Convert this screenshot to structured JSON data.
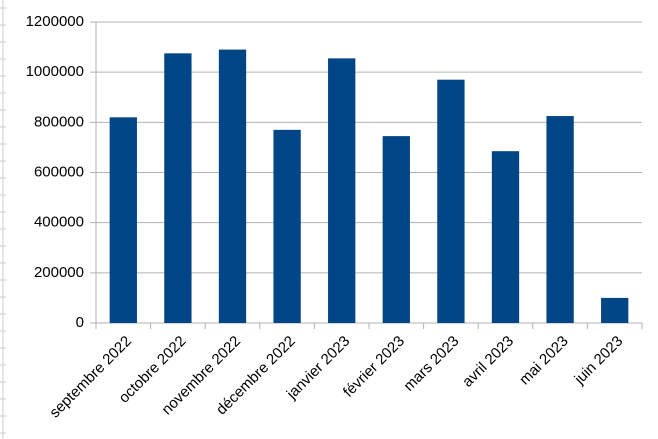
{
  "chart_data": {
    "type": "bar",
    "categories": [
      "septembre 2022",
      "octobre 2022",
      "novembre 2022",
      "décembre 2022",
      "janvier 2023",
      "février 2023",
      "mars 2023",
      "avril 2023",
      "mai 2023",
      "juin 2023"
    ],
    "values": [
      820000,
      1075000,
      1090000,
      770000,
      1055000,
      745000,
      970000,
      685000,
      825000,
      100000
    ],
    "color": "#004586",
    "ylim": [
      0,
      1200000
    ],
    "yticks": [
      0,
      200000,
      400000,
      600000,
      800000,
      1000000,
      1200000
    ],
    "grid": true
  }
}
